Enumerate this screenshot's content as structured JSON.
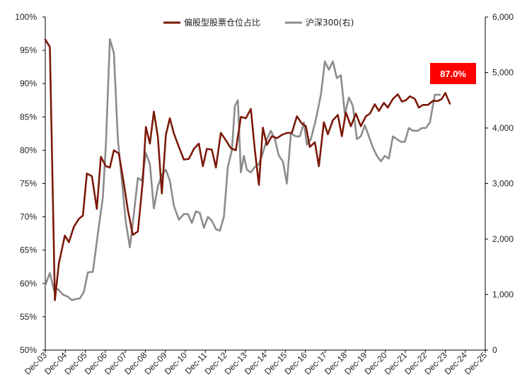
{
  "chart_data": {
    "type": "line",
    "title": "",
    "xlabel": "",
    "ylabel_left": "",
    "ylabel_right": "",
    "legend_position": "top-center",
    "grid": false,
    "x_tick_labels": [
      "Dec-03",
      "Dec-04",
      "Dec-05",
      "Dec-06",
      "Dec-07",
      "Dec-08",
      "Dec-09",
      "Dec-10",
      "Dec-11",
      "Dec-12",
      "Dec-13",
      "Dec-14",
      "Dec-15",
      "Dec-16",
      "Dec-17",
      "Dec-18",
      "Dec-19",
      "Dec-20",
      "Dec-21",
      "Dec-22",
      "Dec-23",
      "Dec-24",
      "Dec-25"
    ],
    "x_range": [
      2003.92,
      2025.92
    ],
    "left_axis": {
      "ylim": [
        50,
        100
      ],
      "tick_values": [
        50,
        55,
        60,
        65,
        70,
        75,
        80,
        85,
        90,
        95,
        100
      ],
      "tick_labels": [
        "50%",
        "55%",
        "60%",
        "65%",
        "70%",
        "75%",
        "80%",
        "85%",
        "90%",
        "95%",
        "100%"
      ]
    },
    "right_axis": {
      "ylim": [
        0,
        6000
      ],
      "tick_values": [
        0,
        1000,
        2000,
        3000,
        4000,
        5000,
        6000
      ],
      "tick_labels": [
        "0",
        "1,000",
        "2,000",
        "3,000",
        "4,000",
        "5,000",
        "6,000"
      ]
    },
    "annotation": {
      "text": "87.0%",
      "color": "#ff0000"
    },
    "series": [
      {
        "name": "偏股型股票仓位占比",
        "axis": "left",
        "color": "#7b1a0a",
        "points": [
          [
            2003.92,
            96.6
          ],
          [
            2004.15,
            95.5
          ],
          [
            2004.4,
            57.5
          ],
          [
            2004.6,
            63
          ],
          [
            2004.9,
            67.2
          ],
          [
            2005.1,
            66.2
          ],
          [
            2005.35,
            68.5
          ],
          [
            2005.6,
            69.7
          ],
          [
            2005.8,
            70.2
          ],
          [
            2006.0,
            76.5
          ],
          [
            2006.25,
            76.1
          ],
          [
            2006.5,
            71.2
          ],
          [
            2006.7,
            79
          ],
          [
            2006.95,
            77.6
          ],
          [
            2007.15,
            77.4
          ],
          [
            2007.35,
            80
          ],
          [
            2007.6,
            79.5
          ],
          [
            2007.85,
            75
          ],
          [
            2008.05,
            71
          ],
          [
            2008.3,
            67.3
          ],
          [
            2008.55,
            67.8
          ],
          [
            2008.8,
            75.5
          ],
          [
            2008.95,
            83.5
          ],
          [
            2009.15,
            81
          ],
          [
            2009.35,
            85.8
          ],
          [
            2009.55,
            82
          ],
          [
            2009.75,
            73.5
          ],
          [
            2009.95,
            82.3
          ],
          [
            2010.15,
            84.8
          ],
          [
            2010.35,
            82.5
          ],
          [
            2010.6,
            80.5
          ],
          [
            2010.85,
            78.6
          ],
          [
            2011.1,
            78.7
          ],
          [
            2011.35,
            80.2
          ],
          [
            2011.6,
            81
          ],
          [
            2011.8,
            77.6
          ],
          [
            2012.0,
            80.2
          ],
          [
            2012.25,
            80.1
          ],
          [
            2012.45,
            77.4
          ],
          [
            2012.7,
            82.6
          ],
          [
            2012.95,
            81.5
          ],
          [
            2013.2,
            80.3
          ],
          [
            2013.45,
            80
          ],
          [
            2013.7,
            85
          ],
          [
            2013.95,
            84.8
          ],
          [
            2014.2,
            86.2
          ],
          [
            2014.4,
            80
          ],
          [
            2014.6,
            74.8
          ],
          [
            2014.8,
            83.4
          ],
          [
            2015.0,
            80.8
          ],
          [
            2015.25,
            82.1
          ],
          [
            2015.5,
            81.8
          ],
          [
            2015.75,
            82.3
          ],
          [
            2016.0,
            82.6
          ],
          [
            2016.25,
            82.6
          ],
          [
            2016.5,
            85.1
          ],
          [
            2016.75,
            84
          ],
          [
            2016.95,
            83.6
          ],
          [
            2017.15,
            80.5
          ],
          [
            2017.4,
            81.2
          ],
          [
            2017.6,
            77.6
          ],
          [
            2017.85,
            84.2
          ],
          [
            2018.05,
            82.4
          ],
          [
            2018.3,
            84.5
          ],
          [
            2018.55,
            85.3
          ],
          [
            2018.75,
            82.1
          ],
          [
            2018.95,
            85.7
          ],
          [
            2019.2,
            83.6
          ],
          [
            2019.45,
            85.5
          ],
          [
            2019.7,
            83.6
          ],
          [
            2019.95,
            85.1
          ],
          [
            2020.15,
            85.5
          ],
          [
            2020.4,
            86.9
          ],
          [
            2020.6,
            85.9
          ],
          [
            2020.85,
            87.1
          ],
          [
            2021.05,
            86.4
          ],
          [
            2021.3,
            87.7
          ],
          [
            2021.55,
            88.4
          ],
          [
            2021.75,
            87.3
          ],
          [
            2021.95,
            87.5
          ],
          [
            2022.15,
            88.1
          ],
          [
            2022.4,
            87.7
          ],
          [
            2022.6,
            86.4
          ],
          [
            2022.8,
            86.8
          ],
          [
            2023.05,
            86.8
          ],
          [
            2023.3,
            87.4
          ],
          [
            2023.55,
            87.4
          ],
          [
            2023.75,
            87.7
          ],
          [
            2023.92,
            88.6
          ],
          [
            2024.15,
            87
          ]
        ]
      },
      {
        "name": "沪深300(右)",
        "axis": "right",
        "color": "#8c8c8c",
        "points": [
          [
            2003.92,
            1170
          ],
          [
            2004.15,
            1390
          ],
          [
            2004.35,
            1080
          ],
          [
            2004.55,
            1100
          ],
          [
            2004.8,
            1000
          ],
          [
            2005.05,
            960
          ],
          [
            2005.25,
            900
          ],
          [
            2005.45,
            920
          ],
          [
            2005.65,
            930
          ],
          [
            2005.85,
            1050
          ],
          [
            2006.05,
            1400
          ],
          [
            2006.3,
            1410
          ],
          [
            2006.55,
            2100
          ],
          [
            2006.8,
            2750
          ],
          [
            2006.95,
            3700
          ],
          [
            2007.15,
            5600
          ],
          [
            2007.35,
            5350
          ],
          [
            2007.55,
            3800
          ],
          [
            2007.75,
            3050
          ],
          [
            2007.95,
            2300
          ],
          [
            2008.15,
            1850
          ],
          [
            2008.35,
            2450
          ],
          [
            2008.55,
            3100
          ],
          [
            2008.75,
            3050
          ],
          [
            2008.95,
            3550
          ],
          [
            2009.15,
            3350
          ],
          [
            2009.35,
            2550
          ],
          [
            2009.55,
            2950
          ],
          [
            2009.75,
            3150
          ],
          [
            2009.95,
            3250
          ],
          [
            2010.15,
            3050
          ],
          [
            2010.35,
            2600
          ],
          [
            2010.6,
            2350
          ],
          [
            2010.85,
            2450
          ],
          [
            2011.05,
            2450
          ],
          [
            2011.25,
            2290
          ],
          [
            2011.45,
            2500
          ],
          [
            2011.65,
            2470
          ],
          [
            2011.85,
            2200
          ],
          [
            2012.05,
            2400
          ],
          [
            2012.25,
            2330
          ],
          [
            2012.45,
            2180
          ],
          [
            2012.65,
            2150
          ],
          [
            2012.85,
            2400
          ],
          [
            2013.05,
            3300
          ],
          [
            2013.25,
            3600
          ],
          [
            2013.4,
            4400
          ],
          [
            2013.55,
            4500
          ],
          [
            2013.7,
            3200
          ],
          [
            2013.85,
            3500
          ],
          [
            2014.0,
            3250
          ],
          [
            2014.2,
            3200
          ],
          [
            2014.4,
            3300
          ],
          [
            2014.6,
            3350
          ],
          [
            2014.8,
            3550
          ],
          [
            2015.0,
            3800
          ],
          [
            2015.2,
            3950
          ],
          [
            2015.4,
            3800
          ],
          [
            2015.6,
            3500
          ],
          [
            2015.8,
            3400
          ],
          [
            2016.0,
            3000
          ],
          [
            2016.2,
            3900
          ],
          [
            2016.45,
            3850
          ],
          [
            2016.65,
            3850
          ],
          [
            2016.85,
            4100
          ],
          [
            2017.0,
            3700
          ],
          [
            2017.2,
            3800
          ],
          [
            2017.45,
            4150
          ],
          [
            2017.7,
            4600
          ],
          [
            2017.9,
            5200
          ],
          [
            2018.1,
            5050
          ],
          [
            2018.3,
            5200
          ],
          [
            2018.5,
            4900
          ],
          [
            2018.7,
            4950
          ],
          [
            2018.9,
            4250
          ],
          [
            2019.1,
            4550
          ],
          [
            2019.3,
            4400
          ],
          [
            2019.5,
            3800
          ],
          [
            2019.7,
            3850
          ],
          [
            2019.9,
            4050
          ],
          [
            2020.1,
            3850
          ],
          [
            2020.3,
            3650
          ],
          [
            2020.5,
            3500
          ],
          [
            2020.7,
            3400
          ],
          [
            2020.9,
            3500
          ],
          [
            2021.1,
            3450
          ],
          [
            2021.3,
            3850
          ],
          [
            2021.5,
            3800
          ],
          [
            2021.7,
            3750
          ],
          [
            2021.9,
            3750
          ],
          [
            2022.1,
            4000
          ],
          [
            2022.3,
            3950
          ],
          [
            2022.55,
            3950
          ],
          [
            2022.75,
            4000
          ],
          [
            2022.95,
            4000
          ],
          [
            2023.15,
            4100
          ],
          [
            2023.4,
            4600
          ],
          [
            2023.65,
            4600
          ]
        ]
      }
    ]
  }
}
